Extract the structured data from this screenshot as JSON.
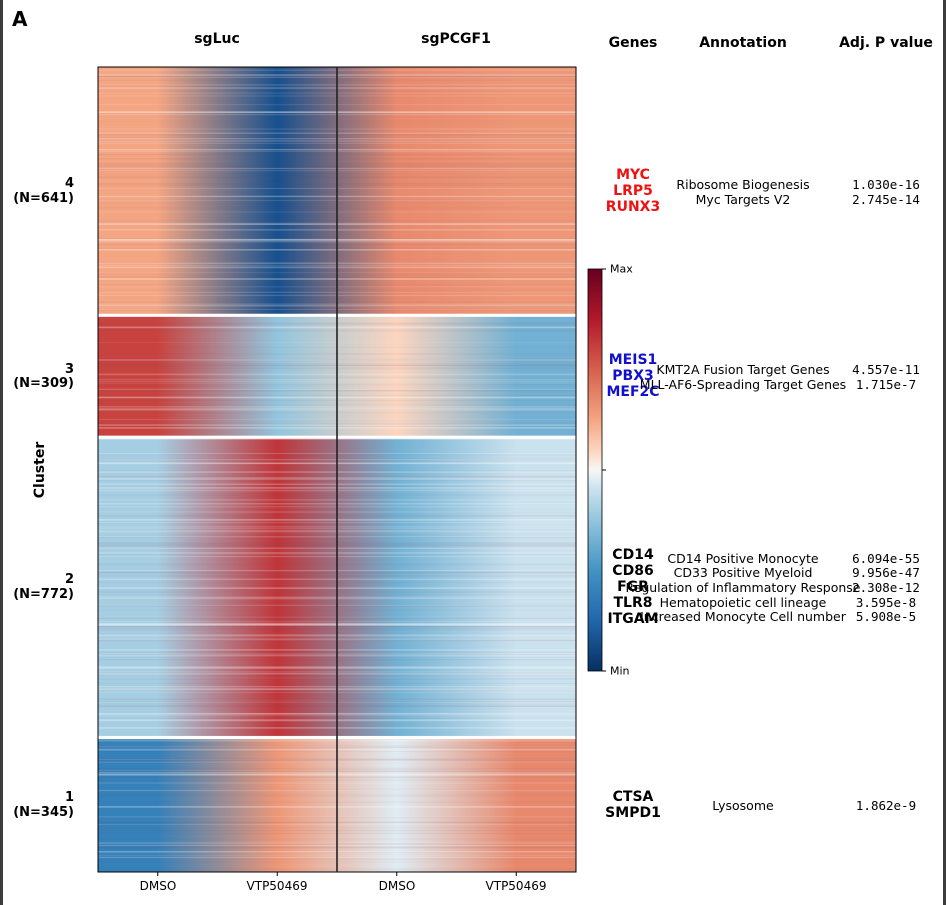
{
  "panel_letter": "A",
  "chart_data": {
    "type": "heatmap",
    "title": "",
    "condition_groups": [
      "sgLuc",
      "sgPCGF1"
    ],
    "columns": [
      "DMSO",
      "VTP50469",
      "DMSO",
      "VTP50469"
    ],
    "ylabel": "Cluster",
    "colormap": "RdBu_r",
    "colorbar": {
      "max_label": "Max",
      "min_label": "Min"
    },
    "clusters": [
      {
        "id": "4",
        "n_label": "(N=641)",
        "n": 641,
        "profile": [
          0.25,
          -0.85,
          0.35,
          0.3
        ],
        "genes": [
          {
            "name": "MYC",
            "color": "#ee1111"
          },
          {
            "name": "LRP5",
            "color": "#ee1111"
          },
          {
            "name": "RUNX3",
            "color": "#ee1111"
          }
        ],
        "annotations": [
          "Ribosome Biogenesis",
          "Myc Targets V2"
        ],
        "pvalues": [
          "1.030e-16",
          "2.745e-14"
        ]
      },
      {
        "id": "3",
        "n_label": "(N=309)",
        "n": 309,
        "profile": [
          0.6,
          -0.25,
          0.1,
          -0.35
        ],
        "genes": [
          {
            "name": "MEIS1",
            "color": "#1111cc"
          },
          {
            "name": "PBX3",
            "color": "#1111cc"
          },
          {
            "name": "MEF2C",
            "color": "#1111cc"
          }
        ],
        "annotations": [
          "KMT2A Fusion Target Genes",
          "MLL-AF6-Spreading Target Genes"
        ],
        "pvalues": [
          "4.557e-11",
          "1.715e-7"
        ]
      },
      {
        "id": "2",
        "n_label": "(N=772)",
        "n": 772,
        "profile": [
          -0.2,
          0.65,
          -0.35,
          -0.1
        ],
        "genes": [
          {
            "name": "CD14",
            "color": "#000000"
          },
          {
            "name": "CD86",
            "color": "#000000"
          },
          {
            "name": "FGR",
            "color": "#000000"
          },
          {
            "name": "TLR8",
            "color": "#000000"
          },
          {
            "name": "ITGAM",
            "color": "#000000"
          }
        ],
        "annotations": [
          "CD14 Positive Monocyte",
          "CD33 Positive Myeloid",
          "Regulation of Inflammatory Response",
          "Hematopoietic cell lineage",
          "Increased Monocyte Cell number"
        ],
        "pvalues": [
          "6.094e-55",
          "9.956e-47",
          "2.308e-12",
          "3.595e-8",
          "5.908e-5"
        ]
      },
      {
        "id": "1",
        "n_label": "(N=345)",
        "n": 345,
        "profile": [
          -0.6,
          0.3,
          -0.05,
          0.35
        ],
        "genes": [
          {
            "name": "CTSA",
            "color": "#000000"
          },
          {
            "name": "SMPD1",
            "color": "#000000"
          }
        ],
        "annotations": [
          "Lysosome"
        ],
        "pvalues": [
          "1.862e-9"
        ]
      }
    ]
  },
  "side_headers": {
    "genes": "Genes",
    "annotation": "Annotation",
    "pvalue": "Adj. P value"
  }
}
